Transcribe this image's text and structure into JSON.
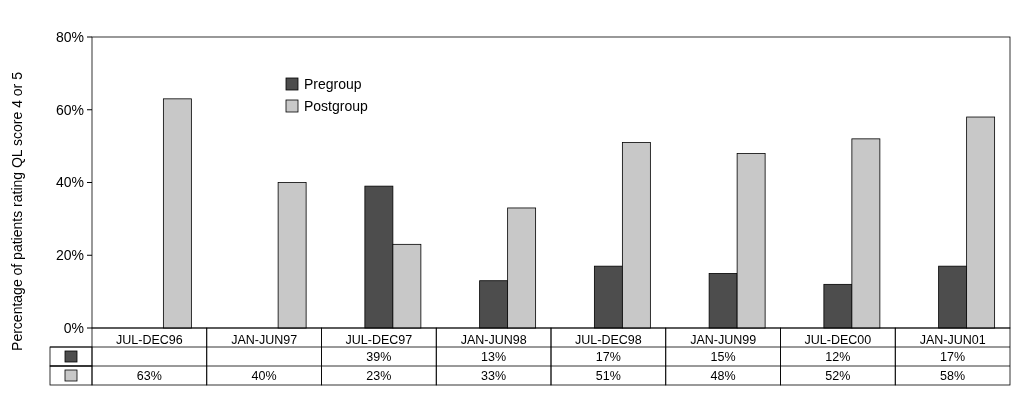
{
  "chart_data": {
    "type": "bar",
    "ylabel": "Percentage of patients rating QL score 4 or 5",
    "categories": [
      "JUL-DEC96",
      "JAN-JUN97",
      "JUL-DEC97",
      "JAN-JUN98",
      "JUL-DEC98",
      "JAN-JUN99",
      "JUL-DEC00",
      "JAN-JUN01"
    ],
    "series": [
      {
        "name": "Pregroup",
        "color": "#4d4d4d",
        "values": [
          null,
          null,
          39,
          13,
          17,
          15,
          12,
          17
        ],
        "value_labels": [
          null,
          null,
          "39%",
          "13%",
          "17%",
          "15%",
          "12%",
          "17%"
        ]
      },
      {
        "name": "Postgroup",
        "color": "#c8c8c8",
        "values": [
          63,
          40,
          23,
          33,
          51,
          48,
          52,
          58
        ],
        "value_labels": [
          "63%",
          "40%",
          "23%",
          "33%",
          "51%",
          "48%",
          "52%",
          "58%"
        ]
      }
    ],
    "ylim": [
      0,
      80
    ],
    "yticks": [
      {
        "value": 0,
        "label": "0%"
      },
      {
        "value": 20,
        "label": "20%"
      },
      {
        "value": 40,
        "label": "40%"
      },
      {
        "value": 60,
        "label": "60%"
      },
      {
        "value": 80,
        "label": "80%"
      }
    ],
    "legend": "top left",
    "grid": false
  }
}
